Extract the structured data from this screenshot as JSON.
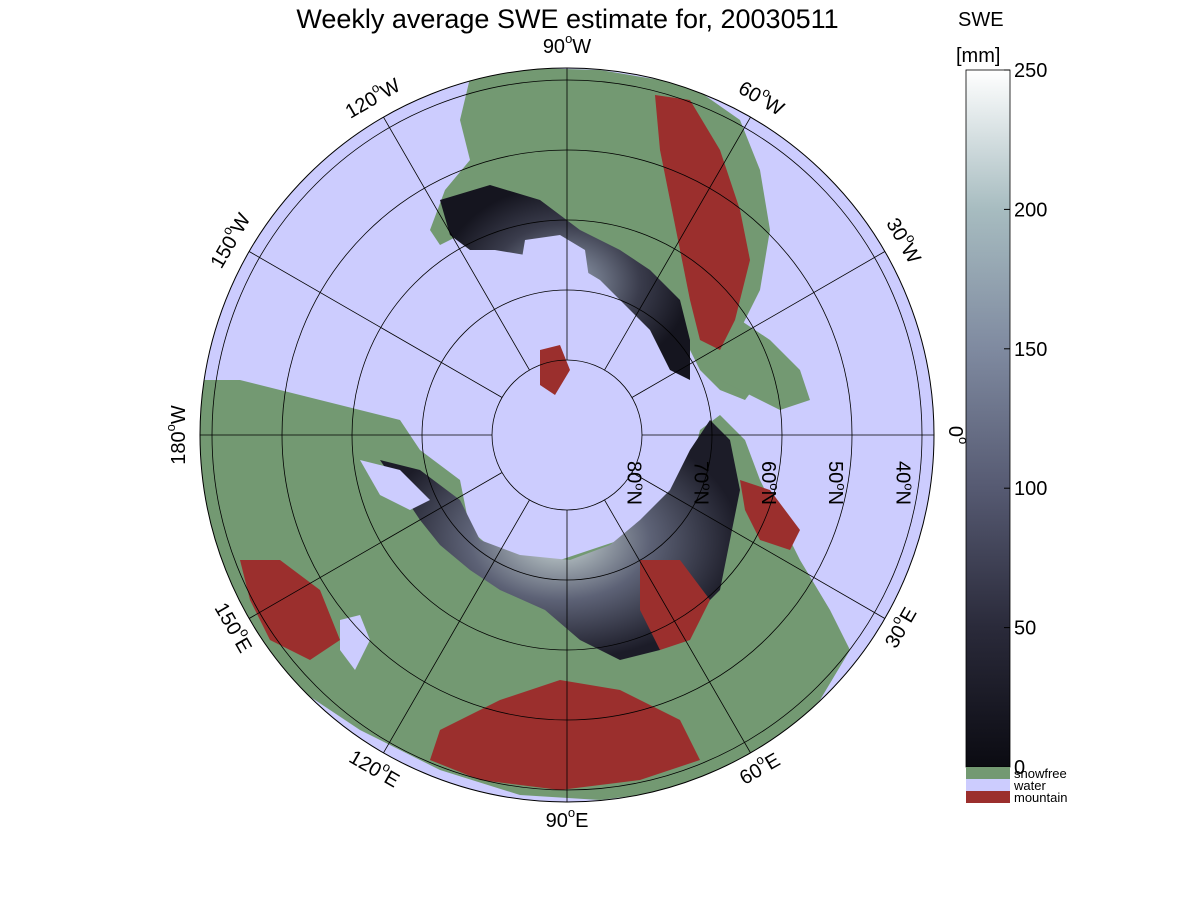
{
  "title": "Weekly average SWE estimate for, 20030511",
  "colorbar": {
    "title_line1": "SWE",
    "title_line2": "[mm]",
    "ticks": [
      "250",
      "200",
      "150",
      "100",
      "50",
      "0"
    ],
    "tick_values": [
      250,
      200,
      150,
      100,
      50,
      0
    ],
    "range": [
      0,
      250
    ],
    "colors": [
      "#0b0b12",
      "#2a2a3a",
      "#565a72",
      "#7f8aa0",
      "#a7bcc0",
      "#ffffff"
    ],
    "categories": [
      {
        "label": "snowfree",
        "color": "#739972"
      },
      {
        "label": "water",
        "color": "#ccccfe"
      },
      {
        "label": "mountain",
        "color": "#9b2f2d"
      }
    ]
  },
  "map": {
    "projection": "north-polar-stereographic",
    "water_color": "#ccccfe",
    "land_color": "#739972",
    "mountain_color": "#9b2f2d",
    "longitude_labels": [
      {
        "deg": 90,
        "text": "90",
        "suffix": "W"
      },
      {
        "deg": 120,
        "text": "120",
        "suffix": "W"
      },
      {
        "deg": 150,
        "text": "150",
        "suffix": "W"
      },
      {
        "deg": 180,
        "text": "180",
        "suffix": "W"
      },
      {
        "deg": 210,
        "text": "150",
        "suffix": "E"
      },
      {
        "deg": 240,
        "text": "120",
        "suffix": "E"
      },
      {
        "deg": 270,
        "text": "90",
        "suffix": "E"
      },
      {
        "deg": 300,
        "text": "60",
        "suffix": "E"
      },
      {
        "deg": 330,
        "text": "30",
        "suffix": "E"
      },
      {
        "deg": 0,
        "text": "0",
        "suffix": ""
      },
      {
        "deg": 30,
        "text": "30",
        "suffix": "W"
      },
      {
        "deg": 60,
        "text": "60",
        "suffix": "W"
      }
    ],
    "latitude_labels": [
      "80",
      "70",
      "60",
      "50",
      "40"
    ],
    "latitude_suffix": "N"
  }
}
